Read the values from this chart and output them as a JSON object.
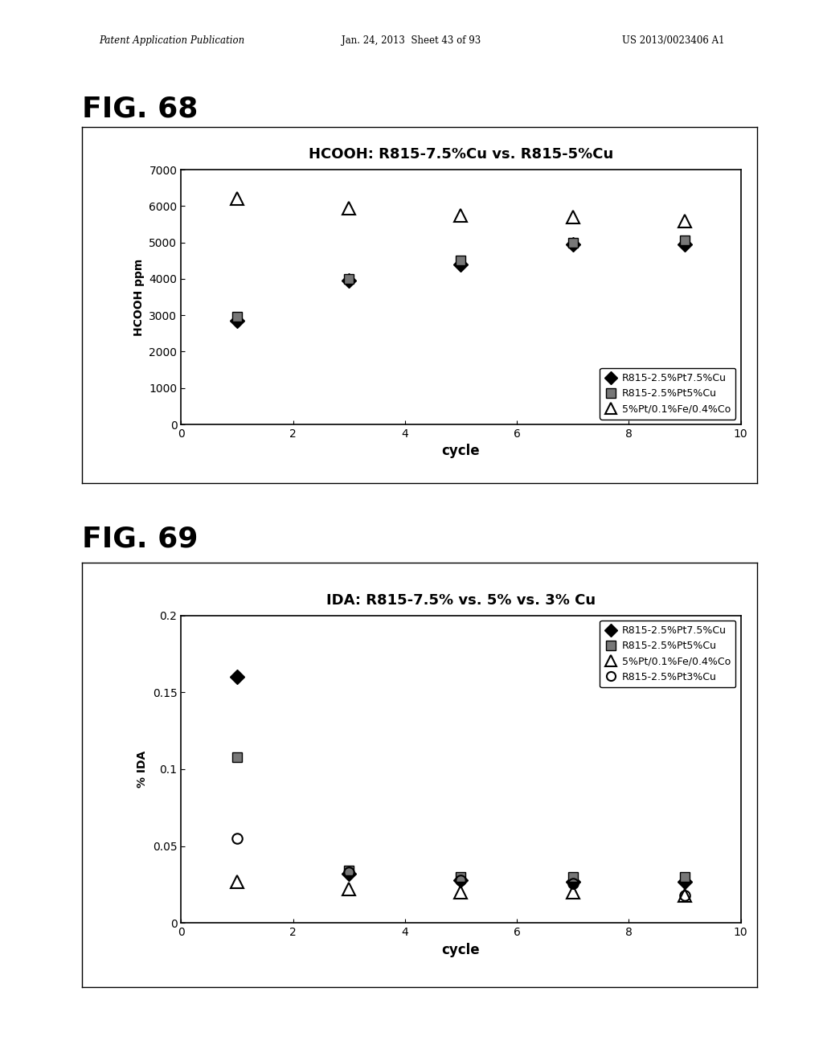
{
  "fig68": {
    "title": "HCOOH: R815-7.5%Cu vs. R815-5%Cu",
    "xlabel": "cycle",
    "ylabel": "HCOOH ppm",
    "xlim": [
      0,
      10
    ],
    "ylim": [
      0,
      7000
    ],
    "xticks": [
      0,
      2,
      4,
      6,
      8,
      10
    ],
    "yticks": [
      0,
      1000,
      2000,
      3000,
      4000,
      5000,
      6000,
      7000
    ],
    "series": [
      {
        "label": "R815-2.5%Pt7.5%Cu",
        "x": [
          1,
          3,
          5,
          7,
          9
        ],
        "y": [
          2850,
          3950,
          4400,
          4950,
          4950
        ],
        "marker": "D",
        "fillstyle": "full",
        "markersize": 9
      },
      {
        "label": "R815-2.5%Pt5%Cu",
        "x": [
          1,
          3,
          5,
          7,
          9
        ],
        "y": [
          2950,
          4000,
          4500,
          5000,
          5050
        ],
        "marker": "s",
        "fillstyle": "hatch",
        "markersize": 9
      },
      {
        "label": "5%Pt/0.1%Fe/0.4%Co",
        "x": [
          1,
          3,
          5,
          7,
          9
        ],
        "y": [
          6200,
          5950,
          5750,
          5700,
          5600
        ],
        "marker": "^",
        "fillstyle": "none",
        "markersize": 12
      }
    ]
  },
  "fig69": {
    "title": "IDA: R815-7.5% vs. 5% vs. 3% Cu",
    "xlabel": "cycle",
    "ylabel": "% IDA",
    "xlim": [
      0,
      10
    ],
    "ylim": [
      0,
      0.2
    ],
    "xticks": [
      0,
      2,
      4,
      6,
      8,
      10
    ],
    "yticks": [
      0,
      0.05,
      0.1,
      0.15,
      0.2
    ],
    "series": [
      {
        "label": "R815-2.5%Pt7.5%Cu",
        "x": [
          1,
          3,
          5,
          7,
          9
        ],
        "y": [
          0.16,
          0.032,
          0.028,
          0.027,
          0.027
        ],
        "marker": "D",
        "fillstyle": "full",
        "markersize": 9
      },
      {
        "label": "R815-2.5%Pt5%Cu",
        "x": [
          1,
          3,
          5,
          7,
          9
        ],
        "y": [
          0.108,
          0.034,
          0.03,
          0.03,
          0.03
        ],
        "marker": "s",
        "fillstyle": "hatch",
        "markersize": 9
      },
      {
        "label": "5%Pt/0.1%Fe/0.4%Co",
        "x": [
          1,
          3,
          5,
          7,
          9
        ],
        "y": [
          0.027,
          0.022,
          0.02,
          0.02,
          0.018
        ],
        "marker": "^",
        "fillstyle": "none",
        "markersize": 12
      },
      {
        "label": "R815-2.5%Pt3%Cu",
        "x": [
          1,
          3,
          5,
          7,
          9
        ],
        "y": [
          0.055,
          0.033,
          0.028,
          0.026,
          0.018
        ],
        "marker": "o",
        "fillstyle": "none",
        "markersize": 9
      }
    ]
  },
  "page_header_left": "Patent Application Publication",
  "page_header_mid": "Jan. 24, 2013  Sheet 43 of 93",
  "page_header_right": "US 2013/0023406 A1",
  "fig68_label": "FIG. 68",
  "fig69_label": "FIG. 69",
  "background_color": "#ffffff"
}
